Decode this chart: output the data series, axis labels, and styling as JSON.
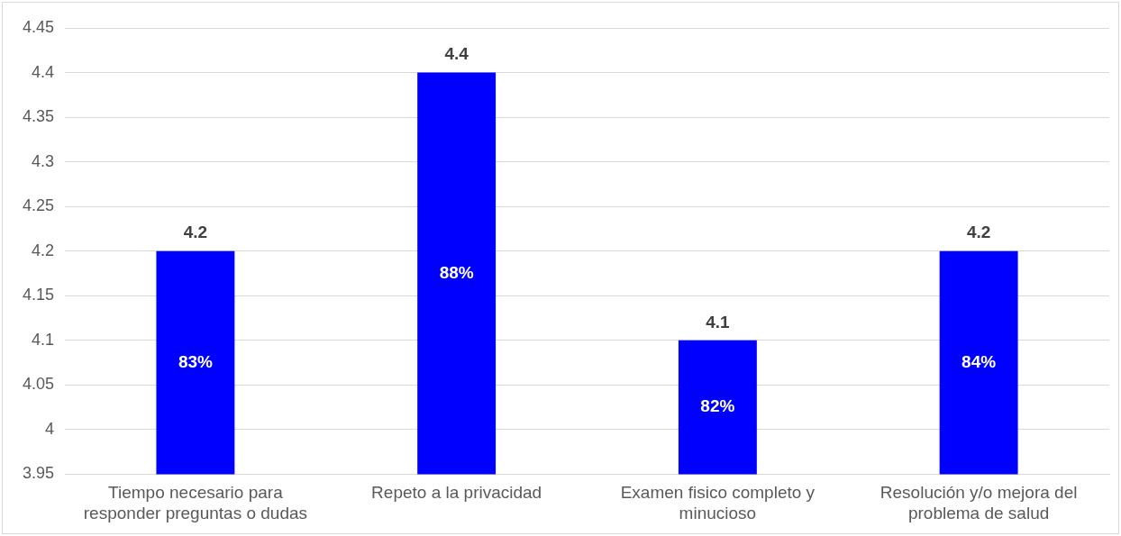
{
  "chart_data": {
    "type": "bar",
    "categories": [
      "Tiempo necesario para responder preguntas o dudas",
      "Repeto a la privacidad",
      "Examen fisico completo y minucioso",
      "Resolución y/o mejora del problema de salud"
    ],
    "values": [
      4.2,
      4.4,
      4.1,
      4.2
    ],
    "color": "#0000ff",
    "ylim": [
      3.95,
      4.45
    ],
    "yticks": [
      3.95,
      4,
      4.05,
      4.1,
      4.15,
      4.2,
      4.25,
      4.3,
      4.35,
      4.4,
      4.45
    ],
    "grid": "y",
    "legend": false,
    "data_labels": true,
    "annotations": [
      "83%",
      "88%",
      "82%",
      "84%"
    ]
  }
}
